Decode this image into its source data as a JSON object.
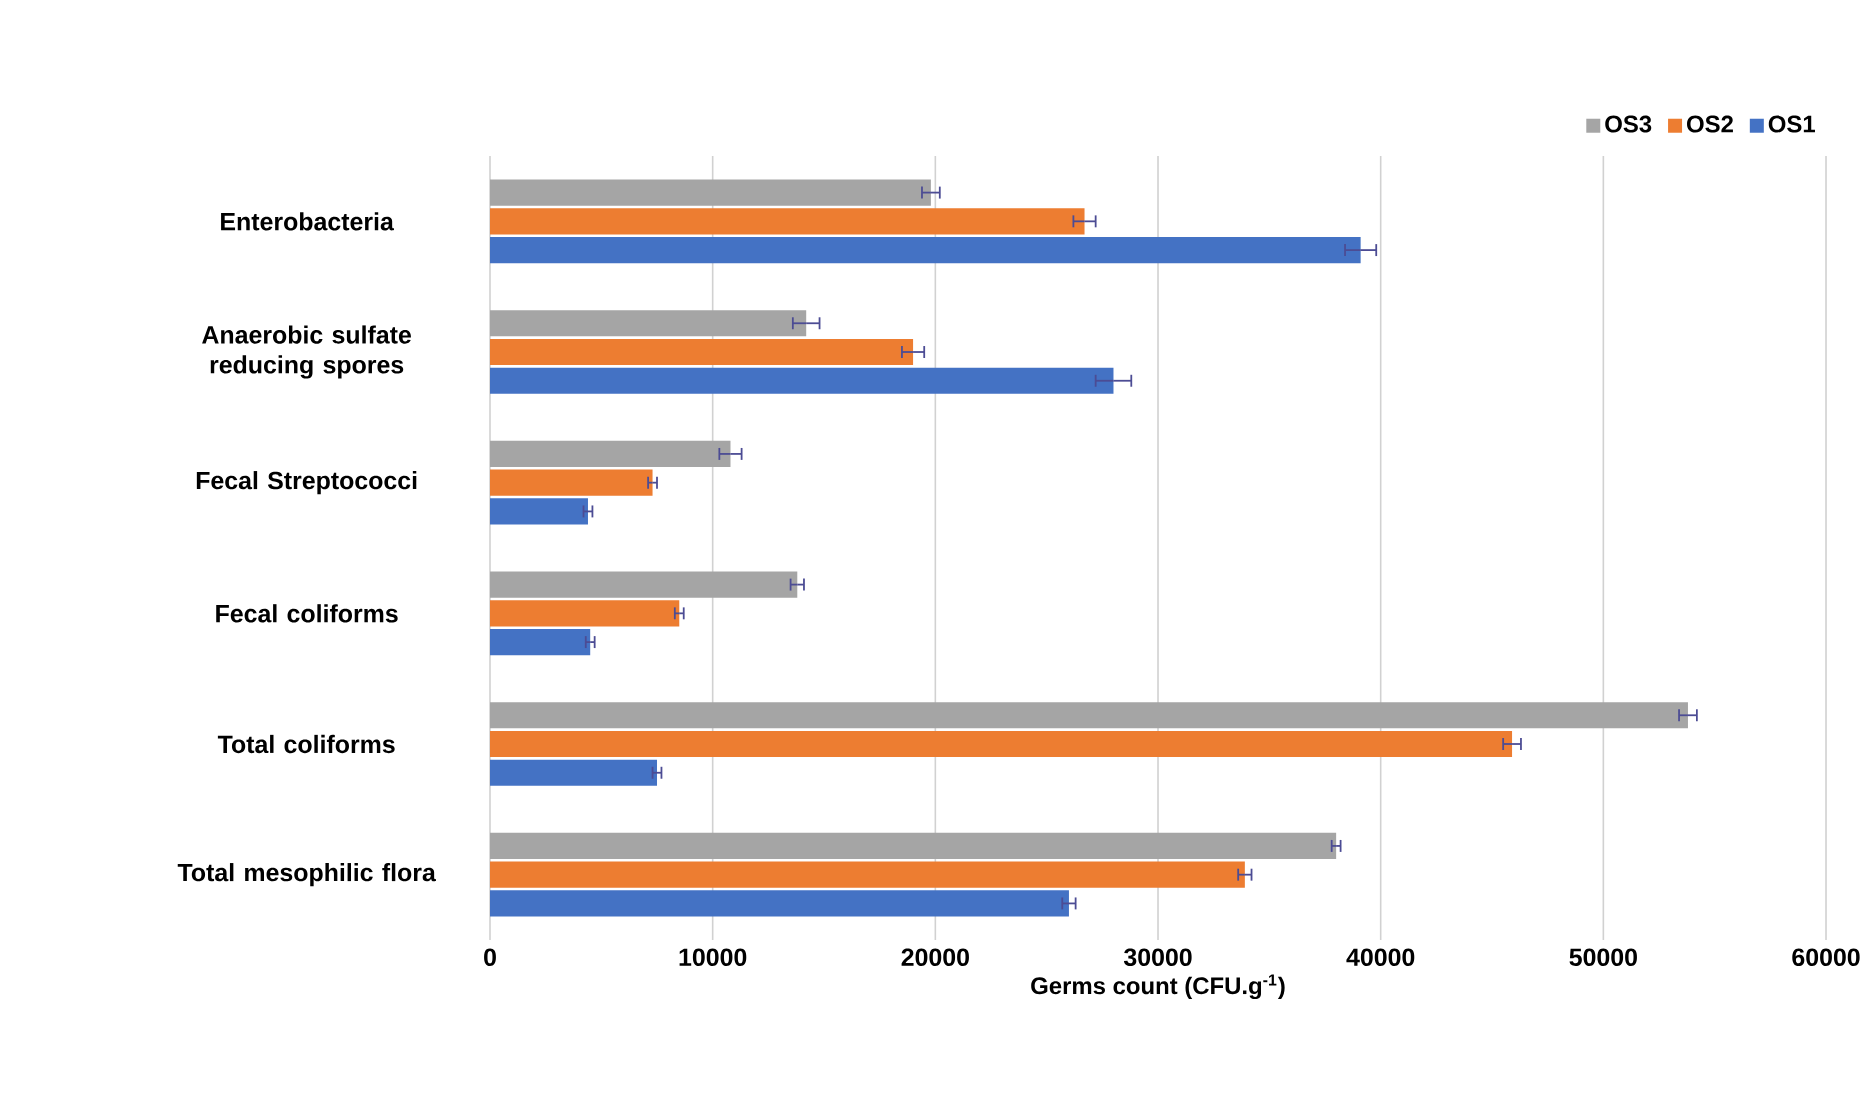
{
  "chart_data": {
    "type": "bar",
    "orientation": "horizontal",
    "xlabel": "Germs count (CFU.g$^{-1}$)",
    "categories": [
      "Enterobacteria",
      "Anaerobic sulfate reducing spores",
      "Fecal Streptococci",
      "Fecal coliforms",
      "Total coliforms",
      "Total mesophilic flora"
    ],
    "series": [
      {
        "name": "OS3",
        "color": "#a5a5a5",
        "values": [
          19800,
          14200,
          10800,
          13800,
          53800,
          38000
        ],
        "errors": [
          400,
          600,
          500,
          300,
          400,
          200
        ]
      },
      {
        "name": "OS2",
        "color": "#ed7d31",
        "values": [
          26700,
          19000,
          7300,
          8500,
          45900,
          33900
        ],
        "errors": [
          500,
          500,
          200,
          200,
          400,
          300
        ]
      },
      {
        "name": "OS1",
        "color": "#4472c4",
        "values": [
          39100,
          28000,
          4400,
          4500,
          7500,
          26000
        ],
        "errors": [
          700,
          800,
          200,
          200,
          200,
          300
        ]
      }
    ],
    "xlim": [
      0,
      60000
    ],
    "xticks": [
      0,
      10000,
      20000,
      30000,
      40000,
      50000,
      60000
    ],
    "grid": "x",
    "legend": "top right"
  }
}
